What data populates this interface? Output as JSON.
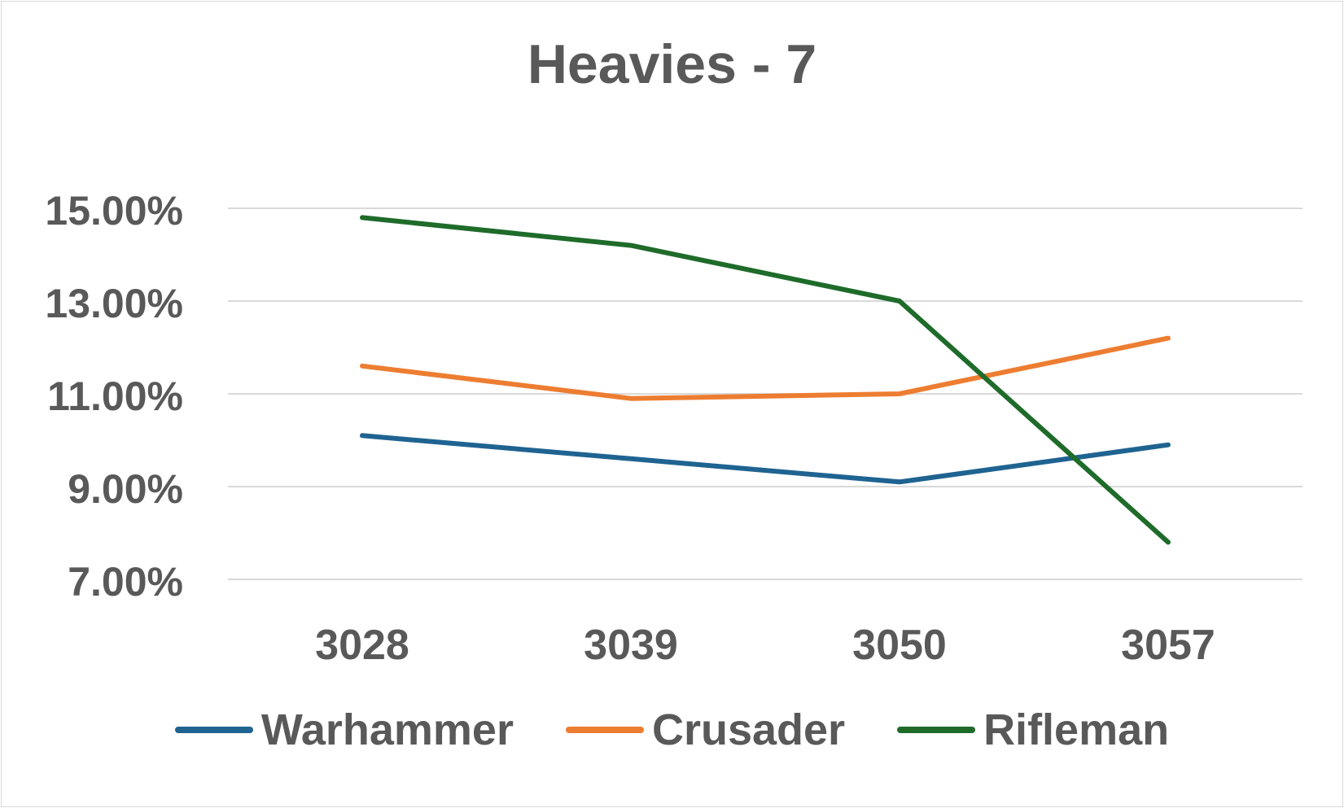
{
  "chart_data": {
    "type": "line",
    "title": "Heavies - 7",
    "xlabel": "",
    "ylabel": "",
    "categories": [
      "3028",
      "3039",
      "3050",
      "3057"
    ],
    "ylim": [
      7,
      15
    ],
    "y_ticks": [
      7,
      9,
      11,
      13,
      15
    ],
    "y_tick_labels": [
      "7.00%",
      "9.00%",
      "11.00%",
      "13.00%",
      "15.00%"
    ],
    "grid": "horizontal",
    "legend_position": "bottom",
    "series": [
      {
        "name": "Warhammer",
        "color": "#1f6391",
        "values": [
          10.1,
          9.6,
          9.1,
          9.9
        ]
      },
      {
        "name": "Crusader",
        "color": "#ed7d31",
        "values": [
          11.6,
          10.9,
          11.0,
          12.2
        ]
      },
      {
        "name": "Rifleman",
        "color": "#1e6b2a",
        "values": [
          14.8,
          14.2,
          13.0,
          7.8
        ]
      }
    ]
  }
}
